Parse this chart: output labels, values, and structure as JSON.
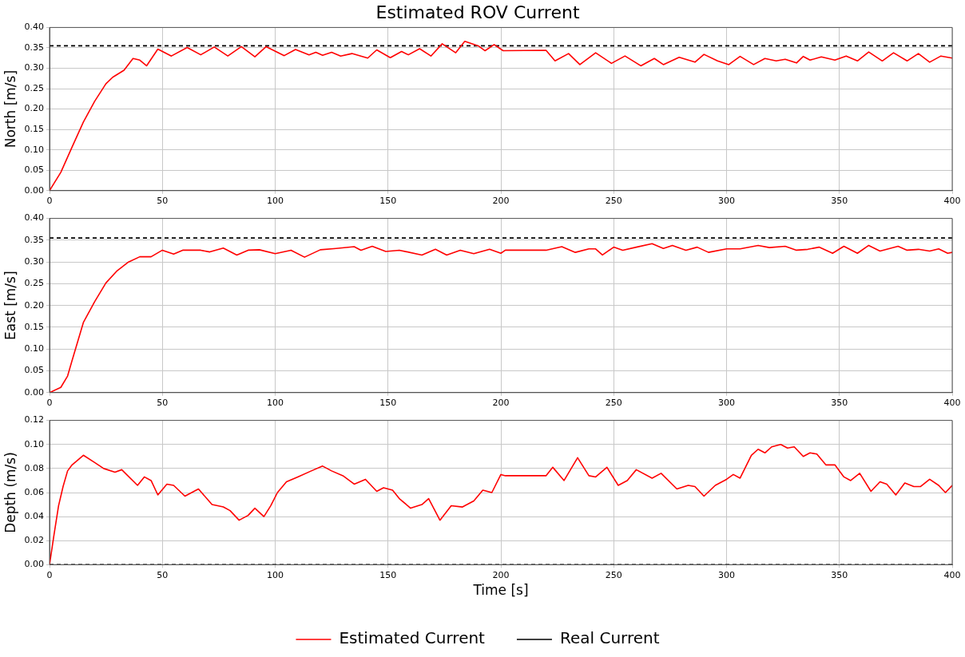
{
  "chart_data": [
    {
      "type": "line",
      "title": "Estimated ROV Current",
      "ylabel": "North [m/s]",
      "xlim": [
        0,
        400
      ],
      "xticks": [
        0,
        50,
        100,
        150,
        200,
        250,
        300,
        350,
        400
      ],
      "ylim": [
        0,
        0.4
      ],
      "yticks": [
        {
          "value": 0,
          "label": "0.00"
        },
        {
          "value": 0.05,
          "label": "0.05"
        },
        {
          "value": 0.1,
          "label": "0.10"
        },
        {
          "value": 0.15,
          "label": "0.15"
        },
        {
          "value": 0.2,
          "label": "0.20"
        },
        {
          "value": 0.25,
          "label": "0.25"
        },
        {
          "value": 0.3,
          "label": "0.30"
        },
        {
          "value": 0.35,
          "label": "0.35"
        },
        {
          "value": 0.4,
          "label": "0.40"
        }
      ],
      "grid": true,
      "legend": false,
      "series": [
        {
          "color": "#ff0000",
          "line_style": "solid",
          "x": [
            0,
            5,
            10,
            15,
            20,
            25,
            28,
            33,
            37,
            40,
            43,
            48,
            54,
            61,
            67,
            73,
            79,
            85,
            91,
            96,
            104,
            109,
            115,
            118,
            121,
            125,
            129,
            134,
            141,
            145,
            151,
            156,
            159,
            164,
            169,
            174,
            180,
            184,
            190,
            193,
            197,
            201,
            220,
            224,
            230,
            235,
            242,
            249,
            255,
            262,
            268,
            272,
            279,
            286,
            290,
            296,
            301,
            306,
            312,
            317,
            322,
            326,
            331,
            334,
            337,
            342,
            348,
            353,
            358,
            363,
            369,
            374,
            380,
            385,
            390,
            395,
            400
          ],
          "values": [
            0,
            0.045,
            0.107,
            0.168,
            0.219,
            0.262,
            0.278,
            0.295,
            0.324,
            0.32,
            0.306,
            0.347,
            0.33,
            0.351,
            0.333,
            0.352,
            0.33,
            0.353,
            0.328,
            0.353,
            0.331,
            0.346,
            0.333,
            0.339,
            0.332,
            0.339,
            0.33,
            0.336,
            0.325,
            0.345,
            0.326,
            0.341,
            0.333,
            0.348,
            0.33,
            0.36,
            0.338,
            0.366,
            0.355,
            0.343,
            0.358,
            0.343,
            0.344,
            0.318,
            0.336,
            0.309,
            0.338,
            0.312,
            0.33,
            0.306,
            0.324,
            0.309,
            0.327,
            0.315,
            0.334,
            0.318,
            0.309,
            0.329,
            0.309,
            0.324,
            0.318,
            0.322,
            0.313,
            0.329,
            0.32,
            0.328,
            0.32,
            0.33,
            0.318,
            0.34,
            0.318,
            0.338,
            0.318,
            0.336,
            0.315,
            0.33,
            0.325
          ]
        },
        {
          "color": "#000000",
          "line_style": "dashed",
          "x": [
            0,
            400
          ],
          "values": [
            0.355,
            0.355
          ]
        }
      ]
    },
    {
      "type": "line",
      "ylabel": "East [m/s]",
      "xlim": [
        0,
        400
      ],
      "xticks": [
        0,
        50,
        100,
        150,
        200,
        250,
        300,
        350,
        400
      ],
      "ylim": [
        0,
        0.4
      ],
      "yticks": [
        {
          "value": 0,
          "label": "0.00"
        },
        {
          "value": 0.05,
          "label": "0.05"
        },
        {
          "value": 0.1,
          "label": "0.10"
        },
        {
          "value": 0.15,
          "label": "0.15"
        },
        {
          "value": 0.2,
          "label": "0.20"
        },
        {
          "value": 0.25,
          "label": "0.25"
        },
        {
          "value": 0.3,
          "label": "0.30"
        },
        {
          "value": 0.35,
          "label": "0.35"
        },
        {
          "value": 0.4,
          "label": "0.40"
        }
      ],
      "grid": true,
      "legend": false,
      "series": [
        {
          "color": "#ff0000",
          "line_style": "solid",
          "x": [
            0,
            5,
            8,
            10,
            15,
            20,
            25,
            30,
            35,
            40,
            45,
            50,
            55,
            59,
            67,
            71,
            77,
            83,
            88,
            93,
            100,
            107,
            113,
            120,
            127,
            135,
            138,
            143,
            149,
            155,
            165,
            171,
            176,
            182,
            188,
            195,
            200,
            202,
            220,
            227,
            233,
            239,
            242,
            245,
            250,
            254,
            260,
            267,
            272,
            276,
            282,
            287,
            292,
            300,
            306,
            314,
            319,
            326,
            331,
            336,
            341,
            347,
            352,
            358,
            363,
            368,
            376,
            380,
            385,
            390,
            394,
            398,
            400
          ],
          "values": [
            0,
            0.012,
            0.038,
            0.074,
            0.161,
            0.209,
            0.252,
            0.28,
            0.3,
            0.312,
            0.312,
            0.327,
            0.318,
            0.327,
            0.327,
            0.323,
            0.332,
            0.316,
            0.327,
            0.328,
            0.319,
            0.327,
            0.311,
            0.328,
            0.331,
            0.335,
            0.327,
            0.336,
            0.324,
            0.327,
            0.316,
            0.329,
            0.316,
            0.327,
            0.319,
            0.329,
            0.32,
            0.327,
            0.327,
            0.335,
            0.322,
            0.33,
            0.33,
            0.316,
            0.334,
            0.327,
            0.334,
            0.342,
            0.331,
            0.338,
            0.327,
            0.334,
            0.322,
            0.33,
            0.33,
            0.338,
            0.333,
            0.336,
            0.327,
            0.329,
            0.334,
            0.32,
            0.336,
            0.32,
            0.338,
            0.325,
            0.336,
            0.327,
            0.329,
            0.325,
            0.33,
            0.32,
            0.322
          ]
        },
        {
          "color": "#000000",
          "line_style": "dashed",
          "x": [
            0,
            400
          ],
          "values": [
            0.355,
            0.355
          ]
        }
      ]
    },
    {
      "type": "line",
      "xlabel": "Time [s]",
      "ylabel": "Depth (m/s)",
      "xlim": [
        0,
        400
      ],
      "xticks": [
        0,
        50,
        100,
        150,
        200,
        250,
        300,
        350,
        400
      ],
      "ylim": [
        0,
        0.12
      ],
      "yticks": [
        {
          "value": 0,
          "label": "0.00"
        },
        {
          "value": 0.02,
          "label": "0.02"
        },
        {
          "value": 0.04,
          "label": "0.04"
        },
        {
          "value": 0.06,
          "label": "0.06"
        },
        {
          "value": 0.08,
          "label": "0.08"
        },
        {
          "value": 0.1,
          "label": "0.10"
        },
        {
          "value": 0.12,
          "label": "0.12"
        }
      ],
      "grid": true,
      "legend": "bottom",
      "series": [
        {
          "name": "Estimated Current",
          "color": "#ff0000",
          "line_style": "solid",
          "x": [
            0,
            2,
            4,
            6,
            8,
            10,
            15,
            20,
            24,
            29,
            32,
            39,
            42,
            45,
            48,
            52,
            55,
            60,
            66,
            72,
            77,
            80,
            84,
            88,
            91,
            95,
            98,
            101,
            105,
            110,
            116,
            121,
            125,
            130,
            135,
            140,
            145,
            148,
            152,
            155,
            160,
            165,
            168,
            173,
            178,
            183,
            188,
            192,
            196,
            200,
            202,
            220,
            223,
            228,
            234,
            239,
            242,
            247,
            252,
            256,
            260,
            267,
            271,
            278,
            283,
            286,
            290,
            295,
            300,
            303,
            306,
            311,
            314,
            317,
            320,
            324,
            327,
            330,
            334,
            337,
            340,
            344,
            348,
            352,
            355,
            359,
            364,
            368,
            371,
            375,
            379,
            383,
            386,
            390,
            394,
            397,
            400
          ],
          "values": [
            0,
            0.025,
            0.049,
            0.065,
            0.078,
            0.083,
            0.091,
            0.085,
            0.08,
            0.077,
            0.079,
            0.066,
            0.073,
            0.07,
            0.058,
            0.067,
            0.066,
            0.057,
            0.063,
            0.05,
            0.048,
            0.045,
            0.037,
            0.041,
            0.047,
            0.04,
            0.049,
            0.06,
            0.069,
            0.073,
            0.078,
            0.082,
            0.078,
            0.074,
            0.067,
            0.071,
            0.061,
            0.064,
            0.062,
            0.055,
            0.047,
            0.05,
            0.055,
            0.037,
            0.049,
            0.048,
            0.053,
            0.062,
            0.06,
            0.075,
            0.074,
            0.074,
            0.081,
            0.07,
            0.089,
            0.074,
            0.073,
            0.081,
            0.066,
            0.07,
            0.079,
            0.072,
            0.076,
            0.063,
            0.066,
            0.065,
            0.057,
            0.066,
            0.071,
            0.075,
            0.072,
            0.091,
            0.096,
            0.093,
            0.098,
            0.1,
            0.097,
            0.098,
            0.09,
            0.093,
            0.092,
            0.083,
            0.083,
            0.073,
            0.07,
            0.076,
            0.061,
            0.069,
            0.067,
            0.058,
            0.068,
            0.065,
            0.065,
            0.071,
            0.066,
            0.06,
            0.066
          ]
        },
        {
          "name": "Real Current",
          "color": "#000000",
          "line_style": "dashed",
          "x": [
            0,
            400
          ],
          "values": [
            0,
            0
          ]
        }
      ]
    }
  ]
}
